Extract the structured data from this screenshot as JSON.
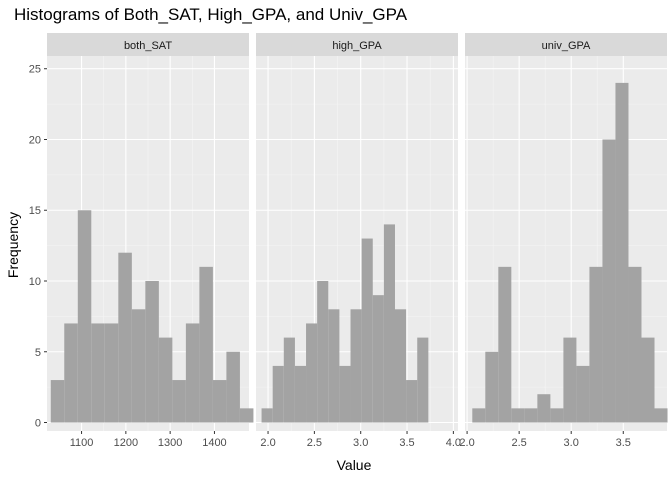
{
  "chart_data": {
    "type": "bar",
    "title": "Histograms of Both_SAT, High_GPA, and Univ_GPA",
    "xlabel": "Value",
    "ylabel": "Frequency",
    "ylim": [
      0,
      25
    ],
    "y_ticks": [
      0,
      5,
      10,
      15,
      20,
      25
    ],
    "grid": true,
    "colors": {
      "panel_bg": "#ebebeb",
      "strip_bg": "#d9d9d9",
      "bar_fill": "#a3a3a3",
      "grid_major": "#ffffff",
      "grid_minor": "#f5f5f5",
      "tick_text": "#4d4d4d"
    },
    "panels": [
      {
        "label": "both_SAT",
        "xlim": [
          1022,
          1478
        ],
        "x_ticks": [
          1100,
          1200,
          1300,
          1400
        ],
        "bin_start": 1030.5,
        "bin_width": 30.5,
        "counts": [
          3,
          7,
          15,
          7,
          7,
          12,
          8,
          10,
          6,
          3,
          7,
          11,
          3,
          5,
          1
        ]
      },
      {
        "label": "high_GPA",
        "xlim": [
          1.87,
          4.05
        ],
        "x_ticks": [
          2.0,
          2.5,
          3.0,
          3.5,
          4.0
        ],
        "bin_start": 1.93,
        "bin_width": 0.12,
        "counts": [
          1,
          4,
          6,
          4,
          7,
          10,
          8,
          4,
          8,
          13,
          9,
          14,
          8,
          3,
          6
        ]
      },
      {
        "label": "univ_GPA",
        "xlim": [
          1.98,
          3.92
        ],
        "x_ticks": [
          2.0,
          2.5,
          3.0,
          3.5
        ],
        "bin_start": 2.05,
        "bin_width": 0.125,
        "counts": [
          1,
          5,
          11,
          1,
          1,
          2,
          1,
          6,
          4,
          11,
          20,
          24,
          11,
          6,
          1
        ]
      }
    ]
  }
}
